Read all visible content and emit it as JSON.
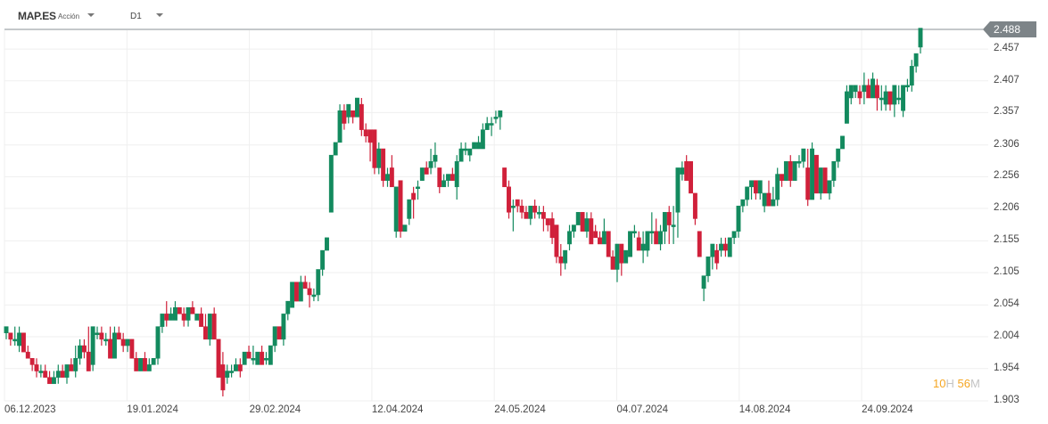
{
  "toolbar": {
    "symbol": "MAP.ES",
    "instrument_type": "Acción",
    "timeframe": "D1"
  },
  "price_panel": {
    "last_price": "2.488",
    "countdown": {
      "hours": "10",
      "hours_unit": "H",
      "minutes": "56",
      "minutes_unit": "M"
    }
  },
  "colors": {
    "up": "#138a5e",
    "down": "#d0203a",
    "grid": "#efefef",
    "last_price_bg": "#7d8488"
  },
  "chart_data": {
    "type": "candlestick",
    "title": "MAP.ES D1",
    "xlabel": "",
    "ylabel": "",
    "x_tick_labels": [
      "06.12.2023",
      "19.01.2024",
      "29.02.2024",
      "12.04.2024",
      "24.05.2024",
      "04.07.2024",
      "14.08.2024",
      "24.09.2024"
    ],
    "y_tick_labels": [
      "2.457",
      "2.407",
      "2.357",
      "2.306",
      "2.256",
      "2.206",
      "2.155",
      "2.105",
      "2.054",
      "2.004",
      "1.954",
      "1.903"
    ],
    "ylim": [
      1.9,
      2.49
    ],
    "grid": true,
    "last_price": 2.488,
    "candles_ohlc": [
      [
        2.01,
        2.02,
        2.0,
        2.02
      ],
      [
        2.01,
        2.01,
        1.99,
        2.0
      ],
      [
        2.0,
        2.02,
        1.99,
        2.0
      ],
      [
        1.99,
        2.02,
        1.98,
        2.01
      ],
      [
        2.01,
        2.01,
        1.98,
        1.98
      ],
      [
        1.98,
        1.99,
        1.97,
        1.97
      ],
      [
        1.97,
        1.97,
        1.95,
        1.96
      ],
      [
        1.96,
        1.97,
        1.94,
        1.95
      ],
      [
        1.95,
        1.96,
        1.94,
        1.95
      ],
      [
        1.95,
        1.96,
        1.94,
        1.94
      ],
      [
        1.94,
        1.95,
        1.93,
        1.93
      ],
      [
        1.93,
        1.95,
        1.93,
        1.94
      ],
      [
        1.94,
        1.96,
        1.93,
        1.95
      ],
      [
        1.95,
        1.96,
        1.94,
        1.94
      ],
      [
        1.94,
        1.96,
        1.93,
        1.96
      ],
      [
        1.96,
        1.97,
        1.95,
        1.95
      ],
      [
        1.95,
        1.99,
        1.94,
        1.97
      ],
      [
        1.97,
        2.0,
        1.96,
        1.99
      ],
      [
        1.99,
        2.0,
        1.97,
        1.98
      ],
      [
        1.98,
        2.02,
        1.95,
        1.95
      ],
      [
        1.96,
        2.02,
        1.95,
        2.02
      ],
      [
        2.01,
        2.02,
        2.0,
        2.01
      ],
      [
        2.01,
        2.02,
        1.99,
        2.0
      ],
      [
        2.0,
        2.01,
        1.99,
        2.0
      ],
      [
        2.0,
        2.02,
        1.97,
        1.97
      ],
      [
        1.97,
        2.02,
        1.97,
        2.01
      ],
      [
        2.01,
        2.02,
        2.0,
        2.0
      ],
      [
        2.0,
        2.01,
        1.98,
        1.99
      ],
      [
        1.99,
        2.0,
        1.98,
        2.0
      ],
      [
        2.0,
        2.0,
        1.97,
        1.97
      ],
      [
        1.97,
        1.98,
        1.95,
        1.95
      ],
      [
        1.95,
        1.97,
        1.95,
        1.97
      ],
      [
        1.97,
        1.98,
        1.95,
        1.95
      ],
      [
        1.95,
        1.97,
        1.95,
        1.96
      ],
      [
        1.96,
        1.97,
        1.96,
        1.97
      ],
      [
        1.97,
        2.02,
        1.96,
        2.02
      ],
      [
        2.02,
        2.04,
        2.01,
        2.04
      ],
      [
        2.04,
        2.06,
        2.02,
        2.03
      ],
      [
        2.03,
        2.05,
        2.03,
        2.04
      ],
      [
        2.03,
        2.06,
        2.03,
        2.05
      ],
      [
        2.05,
        2.05,
        2.04,
        2.04
      ],
      [
        2.04,
        2.05,
        2.02,
        2.03
      ],
      [
        2.03,
        2.05,
        2.02,
        2.05
      ],
      [
        2.05,
        2.06,
        2.04,
        2.04
      ],
      [
        2.03,
        2.04,
        2.03,
        2.04
      ],
      [
        2.04,
        2.05,
        2.02,
        2.02
      ],
      [
        2.02,
        2.04,
        2.0,
        2.0
      ],
      [
        2.0,
        2.04,
        1.99,
        2.04
      ],
      [
        2.04,
        2.05,
        2.0,
        2.0
      ],
      [
        2.0,
        2.0,
        1.94,
        1.94
      ],
      [
        1.96,
        1.98,
        1.91,
        1.92
      ],
      [
        1.94,
        1.96,
        1.93,
        1.95
      ],
      [
        1.95,
        1.96,
        1.94,
        1.95
      ],
      [
        1.95,
        1.97,
        1.95,
        1.96
      ],
      [
        1.96,
        1.97,
        1.94,
        1.95
      ],
      [
        1.96,
        1.98,
        1.96,
        1.98
      ],
      [
        1.98,
        1.99,
        1.97,
        1.97
      ],
      [
        1.97,
        1.99,
        1.96,
        1.97
      ],
      [
        1.96,
        1.98,
        1.96,
        1.98
      ],
      [
        1.98,
        1.99,
        1.96,
        1.96
      ],
      [
        1.97,
        1.98,
        1.96,
        1.97
      ],
      [
        1.96,
        1.99,
        1.96,
        1.99
      ],
      [
        1.99,
        2.02,
        1.98,
        2.02
      ],
      [
        2.02,
        2.02,
        2.0,
        2.0
      ],
      [
        2.0,
        2.04,
        1.99,
        2.04
      ],
      [
        2.04,
        2.06,
        2.03,
        2.06
      ],
      [
        2.05,
        2.09,
        2.05,
        2.09
      ],
      [
        2.09,
        2.09,
        2.06,
        2.06
      ],
      [
        2.06,
        2.1,
        2.06,
        2.09
      ],
      [
        2.09,
        2.1,
        2.08,
        2.08
      ],
      [
        2.08,
        2.09,
        2.05,
        2.07
      ],
      [
        2.07,
        2.08,
        2.06,
        2.07
      ],
      [
        2.07,
        2.11,
        2.06,
        2.11
      ],
      [
        2.11,
        2.14,
        2.1,
        2.14
      ],
      [
        2.14,
        2.16,
        2.14,
        2.16
      ],
      [
        2.2,
        2.29,
        2.2,
        2.29
      ],
      [
        2.29,
        2.31,
        2.29,
        2.31
      ],
      [
        2.31,
        2.37,
        2.31,
        2.36
      ],
      [
        2.36,
        2.37,
        2.33,
        2.34
      ],
      [
        2.35,
        2.37,
        2.34,
        2.37
      ],
      [
        2.36,
        2.36,
        2.34,
        2.35
      ],
      [
        2.35,
        2.38,
        2.35,
        2.38
      ],
      [
        2.37,
        2.38,
        2.32,
        2.33
      ],
      [
        2.33,
        2.34,
        2.31,
        2.32
      ],
      [
        2.33,
        2.31,
        2.28,
        2.31
      ],
      [
        2.33,
        2.33,
        2.26,
        2.27
      ],
      [
        2.27,
        2.31,
        2.26,
        2.3
      ],
      [
        2.3,
        2.29,
        2.24,
        2.25
      ],
      [
        2.25,
        2.27,
        2.24,
        2.26
      ],
      [
        2.27,
        2.29,
        2.24,
        2.24
      ],
      [
        2.17,
        2.24,
        2.16,
        2.24
      ],
      [
        2.25,
        2.25,
        2.16,
        2.17
      ],
      [
        2.17,
        2.18,
        2.17,
        2.18
      ],
      [
        2.19,
        2.22,
        2.18,
        2.22
      ],
      [
        2.23,
        2.24,
        2.19,
        2.22
      ],
      [
        2.24,
        2.25,
        2.22,
        2.24
      ],
      [
        2.25,
        2.26,
        2.25,
        2.27
      ],
      [
        2.27,
        2.28,
        2.26,
        2.26
      ],
      [
        2.27,
        2.3,
        2.26,
        2.28
      ],
      [
        2.28,
        2.31,
        2.27,
        2.29
      ],
      [
        2.27,
        2.27,
        2.23,
        2.24
      ],
      [
        2.24,
        2.26,
        2.25,
        2.25
      ],
      [
        2.25,
        2.26,
        2.24,
        2.26
      ],
      [
        2.26,
        2.27,
        2.25,
        2.25
      ],
      [
        2.24,
        2.29,
        2.22,
        2.28
      ],
      [
        2.28,
        2.31,
        2.28,
        2.3
      ],
      [
        2.3,
        2.31,
        2.29,
        2.3
      ],
      [
        2.29,
        2.3,
        2.28,
        2.3
      ],
      [
        2.3,
        2.31,
        2.3,
        2.31
      ],
      [
        2.3,
        2.32,
        2.3,
        2.31
      ],
      [
        2.3,
        2.34,
        2.3,
        2.33
      ],
      [
        2.33,
        2.35,
        2.33,
        2.34
      ],
      [
        2.34,
        2.35,
        2.32,
        2.34
      ],
      [
        2.35,
        2.36,
        2.34,
        2.35
      ],
      [
        2.35,
        2.36,
        2.33,
        2.36
      ],
      [
        2.27,
        2.27,
        2.24,
        2.24
      ],
      [
        2.24,
        2.25,
        2.19,
        2.2
      ],
      [
        2.21,
        2.22,
        2.17,
        2.21
      ],
      [
        2.22,
        2.22,
        2.2,
        2.21
      ],
      [
        2.21,
        2.22,
        2.19,
        2.2
      ],
      [
        2.2,
        2.21,
        2.19,
        2.19
      ],
      [
        2.19,
        2.21,
        2.18,
        2.21
      ],
      [
        2.21,
        2.22,
        2.19,
        2.2
      ],
      [
        2.2,
        2.21,
        2.19,
        2.2
      ],
      [
        2.2,
        2.21,
        2.17,
        2.19
      ],
      [
        2.19,
        2.19,
        2.17,
        2.18
      ],
      [
        2.19,
        2.2,
        2.15,
        2.16
      ],
      [
        2.18,
        2.18,
        2.12,
        2.13
      ],
      [
        2.13,
        2.15,
        2.1,
        2.12
      ],
      [
        2.12,
        2.14,
        2.11,
        2.14
      ],
      [
        2.15,
        2.18,
        2.14,
        2.17
      ],
      [
        2.17,
        2.18,
        2.16,
        2.18
      ],
      [
        2.18,
        2.2,
        2.18,
        2.2
      ],
      [
        2.2,
        2.2,
        2.17,
        2.17
      ],
      [
        2.17,
        2.2,
        2.16,
        2.19
      ],
      [
        2.19,
        2.2,
        2.15,
        2.15
      ],
      [
        2.17,
        2.18,
        2.16,
        2.16
      ],
      [
        2.16,
        2.17,
        2.15,
        2.15
      ],
      [
        2.15,
        2.19,
        2.15,
        2.17
      ],
      [
        2.17,
        2.17,
        2.13,
        2.13
      ],
      [
        2.13,
        2.14,
        2.11,
        2.11
      ],
      [
        2.11,
        2.15,
        2.09,
        2.15
      ],
      [
        2.15,
        2.15,
        2.1,
        2.12
      ],
      [
        2.12,
        2.14,
        2.12,
        2.14
      ],
      [
        2.13,
        2.16,
        2.13,
        2.17
      ],
      [
        2.17,
        2.18,
        2.16,
        2.17
      ],
      [
        2.16,
        2.17,
        2.14,
        2.14
      ],
      [
        2.14,
        2.17,
        2.12,
        2.15
      ],
      [
        2.14,
        2.17,
        2.13,
        2.17
      ],
      [
        2.17,
        2.2,
        2.15,
        2.17
      ],
      [
        2.17,
        2.19,
        2.15,
        2.15
      ],
      [
        2.15,
        2.18,
        2.14,
        2.17
      ],
      [
        2.17,
        2.2,
        2.15,
        2.2
      ],
      [
        2.2,
        2.21,
        2.15,
        2.18
      ],
      [
        2.18,
        2.21,
        2.15,
        2.18
      ],
      [
        2.2,
        2.27,
        2.16,
        2.27
      ],
      [
        2.26,
        2.28,
        2.25,
        2.27
      ],
      [
        2.28,
        2.29,
        2.25,
        2.25
      ],
      [
        2.28,
        2.28,
        2.24,
        2.23
      ],
      [
        2.23,
        2.22,
        2.18,
        2.19
      ],
      [
        2.17,
        2.17,
        2.13,
        2.13
      ],
      [
        2.08,
        2.1,
        2.06,
        2.1
      ],
      [
        2.1,
        2.13,
        2.09,
        2.13
      ],
      [
        2.13,
        2.15,
        2.11,
        2.15
      ],
      [
        2.14,
        2.15,
        2.11,
        2.12
      ],
      [
        2.14,
        2.16,
        2.13,
        2.15
      ],
      [
        2.15,
        2.16,
        2.13,
        2.14
      ],
      [
        2.13,
        2.16,
        2.13,
        2.16
      ],
      [
        2.16,
        2.17,
        2.15,
        2.17
      ],
      [
        2.17,
        2.21,
        2.16,
        2.21
      ],
      [
        2.21,
        2.22,
        2.2,
        2.22
      ],
      [
        2.22,
        2.24,
        2.21,
        2.24
      ],
      [
        2.24,
        2.25,
        2.22,
        2.25
      ],
      [
        2.25,
        2.25,
        2.22,
        2.23
      ],
      [
        2.23,
        2.25,
        2.22,
        2.25
      ],
      [
        2.21,
        2.23,
        2.2,
        2.23
      ],
      [
        2.23,
        2.25,
        2.21,
        2.21
      ],
      [
        2.21,
        2.24,
        2.21,
        2.22
      ],
      [
        2.22,
        2.27,
        2.21,
        2.26
      ],
      [
        2.26,
        2.26,
        2.24,
        2.25
      ],
      [
        2.25,
        2.28,
        2.25,
        2.28
      ],
      [
        2.28,
        2.29,
        2.24,
        2.25
      ],
      [
        2.25,
        2.28,
        2.25,
        2.28
      ],
      [
        2.28,
        2.29,
        2.27,
        2.28
      ],
      [
        2.28,
        2.3,
        2.27,
        2.3
      ],
      [
        2.27,
        2.3,
        2.21,
        2.22
      ],
      [
        2.22,
        2.31,
        2.22,
        2.3
      ],
      [
        2.29,
        2.29,
        2.23,
        2.23
      ],
      [
        2.23,
        2.27,
        2.22,
        2.27
      ],
      [
        2.27,
        2.27,
        2.23,
        2.23
      ],
      [
        2.23,
        2.25,
        2.22,
        2.25
      ],
      [
        2.25,
        2.28,
        2.24,
        2.28
      ],
      [
        2.28,
        2.3,
        2.27,
        2.3
      ],
      [
        2.3,
        2.32,
        2.3,
        2.32
      ],
      [
        2.34,
        2.4,
        2.34,
        2.39
      ],
      [
        2.38,
        2.4,
        2.37,
        2.4
      ],
      [
        2.39,
        2.4,
        2.38,
        2.4
      ],
      [
        2.39,
        2.4,
        2.37,
        2.38
      ],
      [
        2.39,
        2.42,
        2.37,
        2.4
      ],
      [
        2.4,
        2.41,
        2.38,
        2.38
      ],
      [
        2.38,
        2.42,
        2.38,
        2.41
      ],
      [
        2.4,
        2.41,
        2.36,
        2.38
      ],
      [
        2.38,
        2.4,
        2.36,
        2.38
      ],
      [
        2.37,
        2.4,
        2.36,
        2.39
      ],
      [
        2.39,
        2.39,
        2.36,
        2.37
      ],
      [
        2.37,
        2.4,
        2.35,
        2.4
      ],
      [
        2.38,
        2.4,
        2.37,
        2.38
      ],
      [
        2.36,
        2.4,
        2.35,
        2.4
      ],
      [
        2.4,
        2.41,
        2.39,
        2.4
      ],
      [
        2.4,
        2.44,
        2.39,
        2.43
      ],
      [
        2.43,
        2.45,
        2.42,
        2.45
      ],
      [
        2.46,
        2.49,
        2.45,
        2.49
      ]
    ]
  }
}
